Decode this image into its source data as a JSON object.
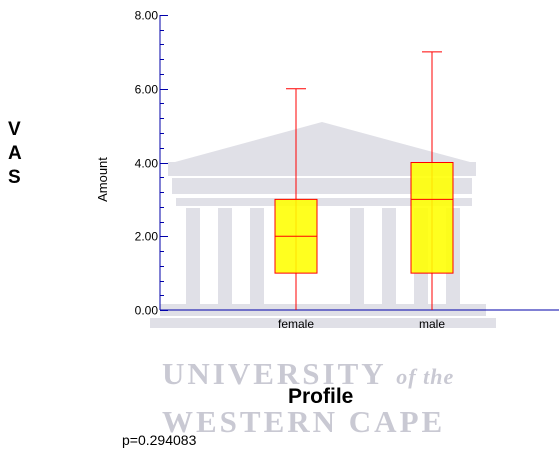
{
  "chart_data": {
    "type": "boxplot",
    "ylabel": "Amount",
    "xlabel": "Profile",
    "side_label": [
      "V",
      "A",
      "S"
    ],
    "ylim": [
      0,
      8
    ],
    "yticks": [
      "0.00",
      "2.00",
      "4.00",
      "6.00",
      "8.00"
    ],
    "ytick_values": [
      0,
      2,
      4,
      6,
      8
    ],
    "categories": [
      "female",
      "male"
    ],
    "boxes": [
      {
        "category": "female",
        "min": 0,
        "q1": 1,
        "median": 2,
        "q3": 3,
        "max": 6
      },
      {
        "category": "male",
        "min": 0,
        "q1": 1,
        "median": 3,
        "q3": 4,
        "max": 7
      }
    ],
    "annotation": "p=0.294083",
    "colors": {
      "box_fill": "#ffff00",
      "box_stroke": "#ff0000",
      "axis": "#0000aa"
    }
  },
  "watermark": {
    "line1": "UNIVERSITY",
    "line1_italic": "of the",
    "line2": "WESTERN CAPE"
  }
}
